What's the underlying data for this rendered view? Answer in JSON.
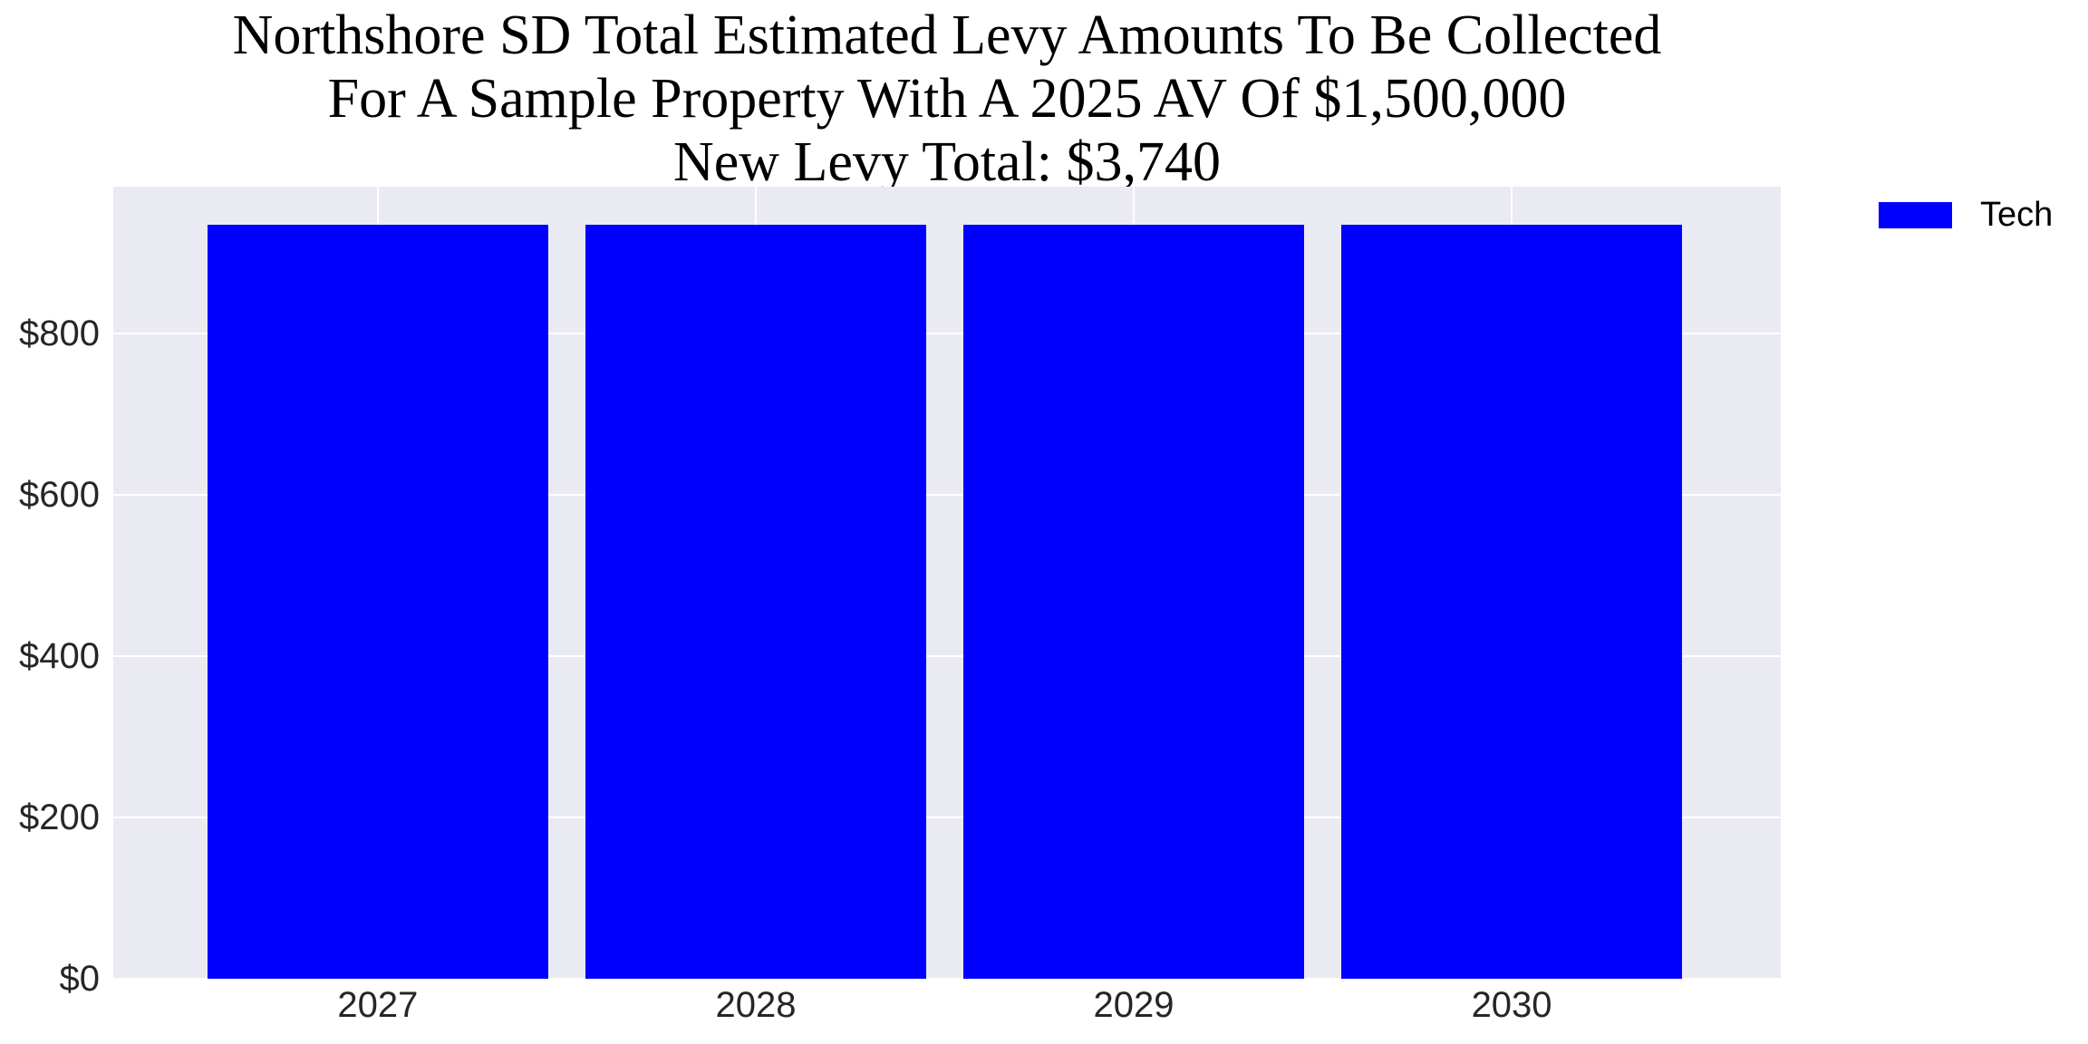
{
  "title": {
    "line1": "Northshore SD Total Estimated Levy Amounts To Be Collected",
    "line2": "For A Sample Property With A 2025 AV Of $1,500,000",
    "line3": "New Levy Total: $3,740"
  },
  "legend": {
    "label": "Tech",
    "swatch_color": "#0000ff"
  },
  "chart_data": {
    "type": "bar",
    "title": "Northshore SD Total Estimated Levy Amounts To Be Collected\nFor A Sample Property With A 2025 AV Of $1,500,000\nNew Levy Total: $3,740",
    "categories": [
      "2027",
      "2028",
      "2029",
      "2030"
    ],
    "series": [
      {
        "name": "Tech",
        "values": [
          935,
          935,
          935,
          935
        ]
      }
    ],
    "xlabel": "",
    "ylabel": "",
    "ylim": [
      0,
      982
    ],
    "xlim": [
      -0.7,
      3.712
    ],
    "yticks": [
      0,
      200,
      400,
      600,
      800
    ],
    "ytick_labels": [
      "$0",
      "$200",
      "$400",
      "$600",
      "$800"
    ],
    "grid": true,
    "grid_color": "#ffffff",
    "plot_bg": "#eaeaf2",
    "bar_color": "#0000ff",
    "bar_width_units": 0.9,
    "legend_position": "upper right, outside plot"
  }
}
